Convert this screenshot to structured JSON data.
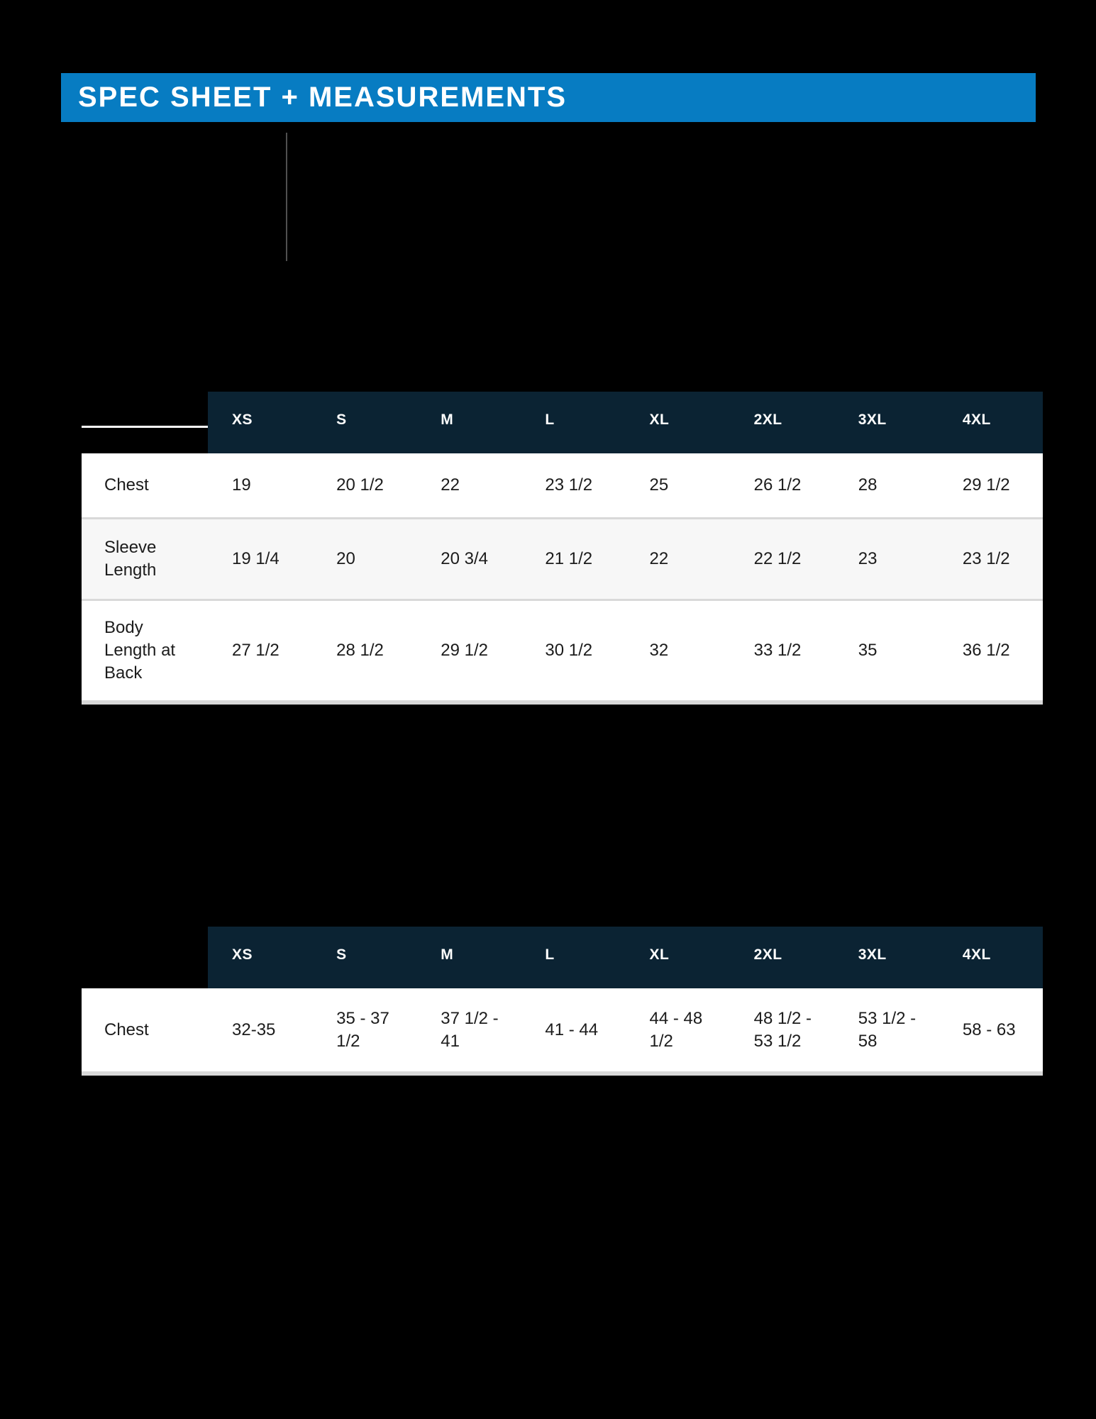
{
  "header": {
    "title": "SPEC SHEET + MEASUREMENTS"
  },
  "colors": {
    "accent": "#077cc2",
    "navy": "#0b2333",
    "row_alt": "#f7f7f7",
    "divider": "#d9d9d9"
  },
  "tables": [
    {
      "columns": [
        "XS",
        "S",
        "M",
        "L",
        "XL",
        "2XL",
        "3XL",
        "4XL"
      ],
      "rows": [
        {
          "label": "Chest",
          "values": [
            "19",
            "20 1/2",
            "22",
            "23 1/2",
            "25",
            "26 1/2",
            "28",
            "29 1/2"
          ]
        },
        {
          "label": "Sleeve Length",
          "values": [
            "19 1/4",
            "20",
            "20 3/4",
            "21 1/2",
            "22",
            "22 1/2",
            "23",
            "23 1/2"
          ]
        },
        {
          "label": "Body Length at Back",
          "values": [
            "27 1/2",
            "28 1/2",
            "29 1/2",
            "30 1/2",
            "32",
            "33 1/2",
            "35",
            "36 1/2"
          ]
        }
      ]
    },
    {
      "columns": [
        "XS",
        "S",
        "M",
        "L",
        "XL",
        "2XL",
        "3XL",
        "4XL"
      ],
      "rows": [
        {
          "label": "Chest",
          "values": [
            "32-35",
            "35 - 37 1/2",
            "37 1/2 - 41",
            "41 - 44",
            "44 - 48 1/2",
            "48 1/2 - 53 1/2",
            "53 1/2 - 58",
            "58 - 63"
          ]
        }
      ]
    }
  ]
}
